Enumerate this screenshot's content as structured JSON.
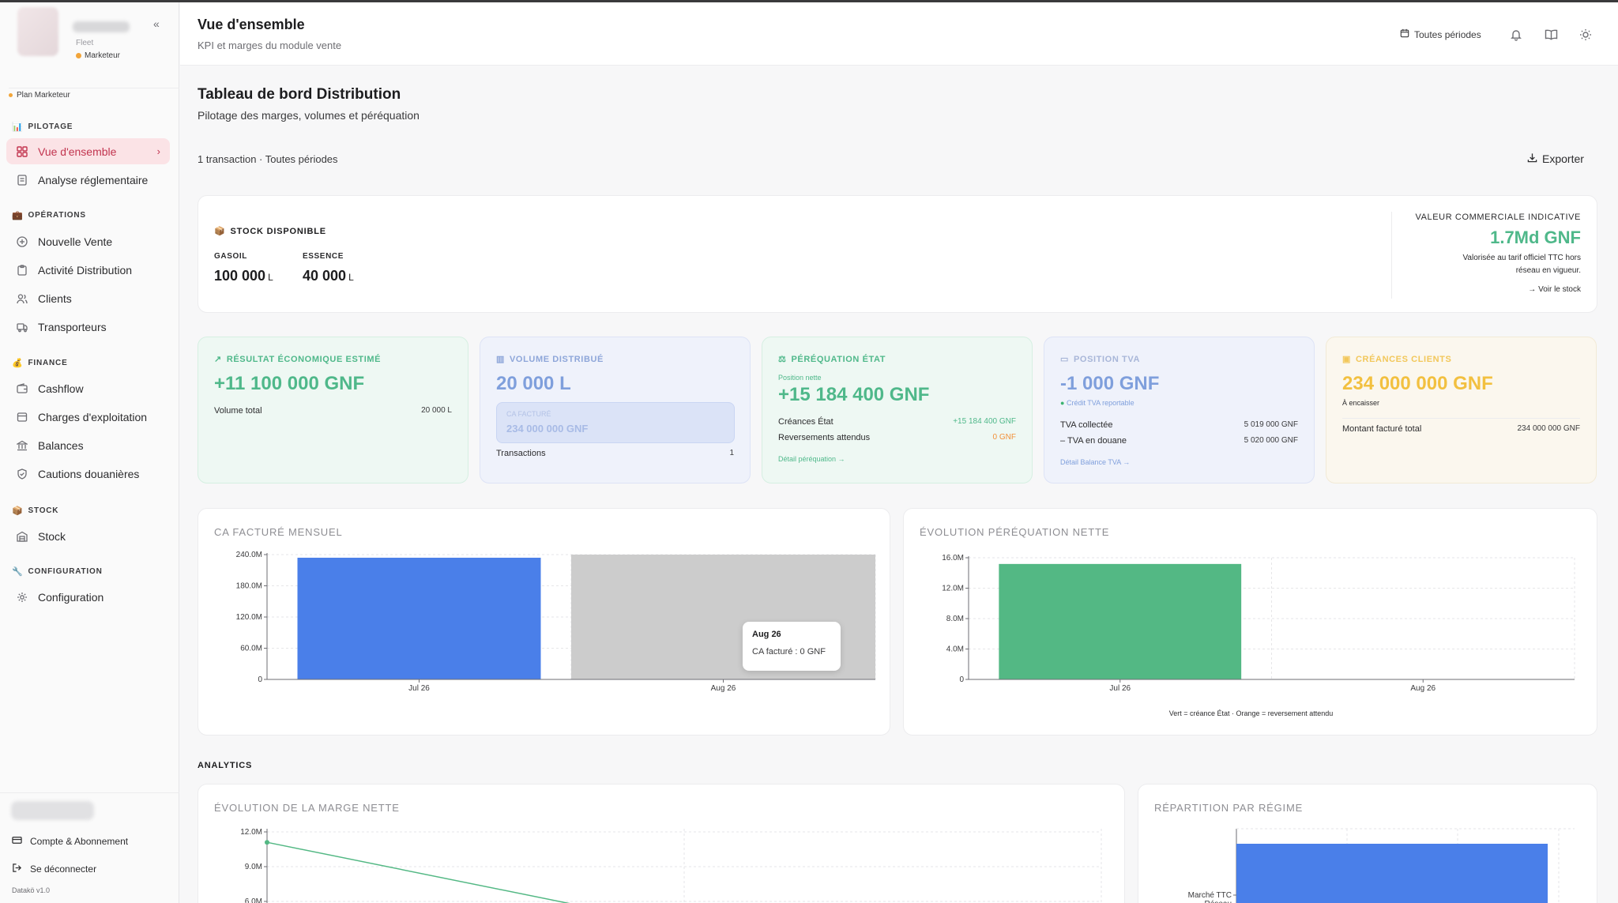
{
  "sidebar": {
    "brand_sub": "Fleet",
    "role": "Marketeur",
    "plan": "Plan Marketeur",
    "sections": {
      "pilotage": "PILOTAGE",
      "operations": "OPÉRATIONS",
      "finance": "FINANCE",
      "stock": "STOCK",
      "configuration": "CONFIGURATION"
    },
    "items": {
      "vue_ensemble": "Vue d'ensemble",
      "analyse": "Analyse réglementaire",
      "nouvelle_vente": "Nouvelle Vente",
      "activite": "Activité Distribution",
      "clients": "Clients",
      "transporteurs": "Transporteurs",
      "cashflow": "Cashflow",
      "charges": "Charges d'exploitation",
      "balances": "Balances",
      "cautions": "Cautions douanières",
      "stock": "Stock",
      "configuration": "Configuration"
    },
    "account": "Compte & Abonnement",
    "logout": "Se déconnecter",
    "version": "Datakö v1.0"
  },
  "header": {
    "title": "Vue d'ensemble",
    "subtitle": "KPI et marges du module vente",
    "period": "Toutes périodes"
  },
  "page": {
    "title": "Tableau de bord Distribution",
    "subtitle": "Pilotage des marges, volumes et péréquation",
    "tx_info": "1 transaction · Toutes périodes",
    "export": "Exporter"
  },
  "stock": {
    "title": "STOCK DISPONIBLE",
    "gasoil_label": "GASOIL",
    "gasoil_value": "100 000",
    "essence_label": "ESSENCE",
    "essence_value": "40 000",
    "unit": "L",
    "vci_label": "VALEUR COMMERCIALE INDICATIVE",
    "vci_value": "1.7Md GNF",
    "vci_note": "Valorisée au tarif officiel TTC hors réseau en vigueur.",
    "vci_link": "→ Voir le stock"
  },
  "kpis": {
    "resultat": {
      "title": "RÉSULTAT ÉCONOMIQUE ESTIMÉ",
      "value": "+11 100 000 GNF",
      "row_label": "Volume total",
      "row_value": "20 000 L"
    },
    "volume": {
      "title": "VOLUME DISTRIBUÉ",
      "value": "20 000 L",
      "ca_label": "CA FACTURÉ",
      "ca_value": "234 000 000 GNF",
      "row_label": "Transactions",
      "row_value": "1"
    },
    "perequation": {
      "title": "PÉRÉQUATION ÉTAT",
      "note": "Position nette",
      "value": "+15 184 400 GNF",
      "row1_label": "Créances État",
      "row1_value": "+15 184 400 GNF",
      "row2_label": "Reversements attendus",
      "row2_value": "0 GNF",
      "link": "Détail péréquation →"
    },
    "tva": {
      "title": "POSITION TVA",
      "value": "-1 000 GNF",
      "note": "Crédit TVA reportable",
      "row1_label": "TVA collectée",
      "row1_value": "5 019 000 GNF",
      "row2_label": "– TVA en douane",
      "row2_value": "5 020 000 GNF",
      "link": "Détail Balance TVA →"
    },
    "creances": {
      "title": "CRÉANCES CLIENTS",
      "value": "234 000 000 GNF",
      "note": "À encaisser",
      "row_label": "Montant facturé total",
      "row_value": "234 000 000 GNF"
    }
  },
  "charts": {
    "ca": {
      "title": "CA FACTURÉ MENSUEL",
      "tooltip_title": "Aug 26",
      "tooltip_text": "CA facturé : 0 GNF"
    },
    "pereq": {
      "title": "ÉVOLUTION PÉRÉQUATION NETTE",
      "legend": "Vert = créance État · Orange = reversement attendu"
    },
    "marge": {
      "title": "ÉVOLUTION DE LA MARGE NETTE"
    },
    "regime": {
      "title": "RÉPARTITION PAR RÉGIME"
    }
  },
  "analytics_label": "ANALYTICS",
  "chart_data": [
    {
      "type": "bar",
      "title": "CA FACTURÉ MENSUEL",
      "categories": [
        "Jul 26",
        "Aug 26"
      ],
      "values": [
        234000000,
        0
      ],
      "ylim": [
        0,
        240000000
      ],
      "yticks": [
        "0",
        "60.0M",
        "120.0M",
        "180.0M",
        "240.0M"
      ],
      "colors": {
        "bar": "#4a7fe9",
        "hover": "#cccccc"
      },
      "grid": true
    },
    {
      "type": "bar",
      "title": "ÉVOLUTION PÉRÉQUATION NETTE",
      "categories": [
        "Jul 26",
        "Aug 26"
      ],
      "values": [
        15184400,
        0
      ],
      "ylim": [
        0,
        16000000
      ],
      "yticks": [
        "0",
        "4.0M",
        "8.0M",
        "12.0M",
        "16.0M"
      ],
      "colors": {
        "bar": "#53b884"
      },
      "grid": true
    },
    {
      "type": "line",
      "title": "ÉVOLUTION DE LA MARGE NETTE",
      "yticks": [
        "6.0M",
        "9.0M",
        "12.0M"
      ],
      "ylim": [
        6000000,
        12000000
      ],
      "series": [
        {
          "values": [
            11100000
          ]
        }
      ],
      "colors": {
        "line": "#53b884"
      },
      "grid": true
    },
    {
      "type": "bar",
      "title": "RÉPARTITION PAR RÉGIME",
      "categories": [
        "Marché TTC Réseau"
      ],
      "orientation": "horizontal",
      "colors": {
        "bar": "#4a7fe9"
      },
      "grid": true
    }
  ]
}
